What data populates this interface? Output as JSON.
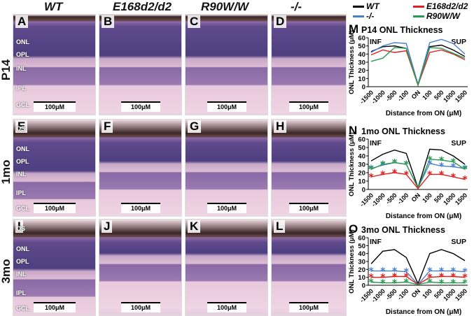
{
  "column_headers": [
    "WT",
    "E168d2/d2",
    "R90W/W",
    "-/-"
  ],
  "row_labels": [
    "P14",
    "1mo",
    "3mo"
  ],
  "legend": [
    {
      "label": "WT",
      "color": "#000000"
    },
    {
      "label": "E168d2/d2",
      "color": "#e02020"
    },
    {
      "label": "-/-",
      "color": "#4a7fd0"
    },
    {
      "label": "R90W/W",
      "color": "#2a9a50"
    }
  ],
  "panels": [
    {
      "letter": "A",
      "scale": "100μM",
      "layers": [
        "ONL",
        "OPL",
        "INL",
        "IPL",
        "GCL"
      ]
    },
    {
      "letter": "B",
      "scale": "100μM",
      "layers": []
    },
    {
      "letter": "C",
      "scale": "100μM",
      "layers": []
    },
    {
      "letter": "D",
      "scale": "100μM",
      "layers": []
    },
    {
      "letter": "E",
      "scale": "100μM",
      "layers": [
        "OS",
        "ONL",
        "OPL",
        "INL",
        "IPL",
        "GCL"
      ]
    },
    {
      "letter": "F",
      "scale": "100μM",
      "layers": []
    },
    {
      "letter": "G",
      "scale": "100μM",
      "layers": []
    },
    {
      "letter": "H",
      "scale": "100μM",
      "layers": []
    },
    {
      "letter": "I",
      "scale": "100μM",
      "layers": [
        "OS",
        "ONL",
        "OPL",
        "INL",
        "IPL",
        "GCL"
      ]
    },
    {
      "letter": "J",
      "scale": "100μM",
      "layers": []
    },
    {
      "letter": "K",
      "scale": "100μM",
      "layers": []
    },
    {
      "letter": "L",
      "scale": "100μM",
      "layers": []
    }
  ],
  "chart_data": [
    {
      "panel": "M",
      "type": "line",
      "title": "P14 ONL Thickness",
      "xlabel": "Distance from ON (μM)",
      "ylabel": "ONL Thickness (μM)",
      "ylim": [
        0,
        60
      ],
      "yticks": [
        0,
        10,
        20,
        30,
        40,
        50,
        60
      ],
      "categories": [
        "-1500",
        "-1000",
        "-500",
        "-100",
        "ON",
        "100",
        "500",
        "1000",
        "1500"
      ],
      "annotations": {
        "left": "INF",
        "right": "SUP"
      },
      "series": [
        {
          "name": "WT",
          "color": "#000000",
          "values": [
            43,
            49,
            50,
            47,
            2,
            49,
            51,
            45,
            37
          ]
        },
        {
          "name": "-/-",
          "color": "#4a7fd0",
          "values": [
            42,
            50,
            54,
            53,
            3,
            54,
            58,
            53,
            40
          ]
        },
        {
          "name": "E168d2/d2",
          "color": "#e02020",
          "values": [
            39,
            45,
            42,
            44,
            2,
            42,
            45,
            40,
            33
          ]
        },
        {
          "name": "R90W/W",
          "color": "#2a9a50",
          "values": [
            31,
            35,
            48,
            47,
            2,
            48,
            47,
            41,
            35
          ]
        }
      ],
      "stars": []
    },
    {
      "panel": "N",
      "type": "line",
      "title": "1mo ONL Thickness",
      "xlabel": "Distance from ON (μM)",
      "ylabel": "ONL Thickness (μM)",
      "ylim": [
        0,
        60
      ],
      "yticks": [
        0,
        10,
        20,
        30,
        40,
        50,
        60
      ],
      "categories": [
        "-1500",
        "-1000",
        "-500",
        "-100",
        "ON",
        "100",
        "500",
        "1000",
        "1500"
      ],
      "annotations": {
        "left": "INF",
        "right": "SUP"
      },
      "series": [
        {
          "name": "WT",
          "color": "#000000",
          "values": [
            34,
            42,
            47,
            43,
            2,
            48,
            47,
            40,
            30
          ]
        },
        {
          "name": "-/-",
          "color": "#4a7fd0",
          "values": [
            25,
            29,
            32,
            30,
            2,
            31,
            28,
            27,
            25
          ]
        },
        {
          "name": "R90W/W",
          "color": "#2a9a50",
          "values": [
            24,
            30,
            32,
            30,
            2,
            36,
            35,
            33,
            24
          ]
        },
        {
          "name": "E168d2/d2",
          "color": "#e02020",
          "values": [
            15,
            18,
            20,
            18,
            1,
            18,
            18,
            15,
            12
          ]
        }
      ],
      "stars": [
        "-/-",
        "R90W/W",
        "E168d2/d2"
      ]
    },
    {
      "panel": "O",
      "type": "line",
      "title": "3mo ONL Thickness",
      "xlabel": "Distance from ON (μM)",
      "ylabel": "ONL Thickness (μM)",
      "ylim": [
        0,
        60
      ],
      "yticks": [
        0,
        10,
        20,
        30,
        40,
        50,
        60
      ],
      "categories": [
        "-1500",
        "-1000",
        "-500",
        "-100",
        "ON",
        "100",
        "500",
        "1000",
        "1500"
      ],
      "annotations": {
        "left": "INF",
        "right": "SUP"
      },
      "series": [
        {
          "name": "WT",
          "color": "#000000",
          "values": [
            27,
            43,
            45,
            35,
            2,
            40,
            45,
            40,
            31
          ]
        },
        {
          "name": "-/-",
          "color": "#4a7fd0",
          "values": [
            18,
            18,
            18,
            17,
            1,
            18,
            18,
            18,
            17
          ]
        },
        {
          "name": "E168d2/d2",
          "color": "#e02020",
          "values": [
            10,
            10,
            11,
            11,
            1,
            10,
            11,
            11,
            10
          ]
        },
        {
          "name": "R90W/W",
          "color": "#2a9a50",
          "values": [
            4,
            3,
            3,
            4,
            1,
            4,
            3,
            3,
            3
          ]
        }
      ],
      "stars": [
        "-/-",
        "E168d2/d2",
        "R90W/W"
      ]
    }
  ]
}
